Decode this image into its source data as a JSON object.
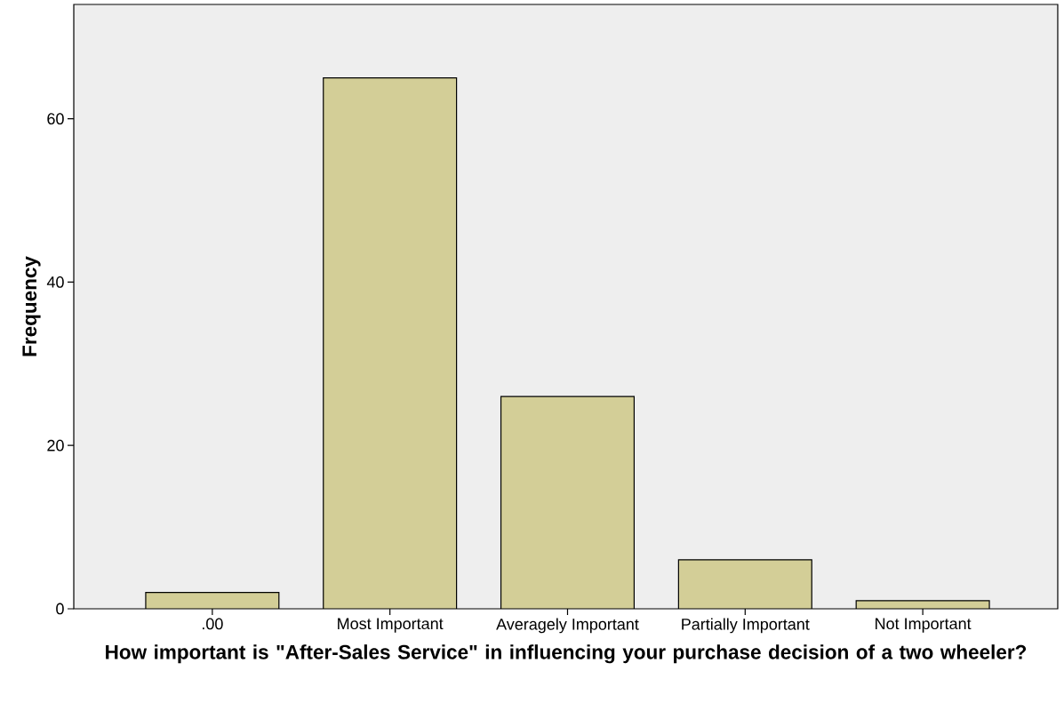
{
  "chart_data": {
    "type": "bar",
    "xlabel": "How important is \"After-Sales Service\" in influencing your purchase decision of a two wheeler?",
    "ylabel": "Frequency",
    "categories": [
      ".00",
      "Most Important",
      "Averagely Important",
      "Partially Important",
      "Not Important"
    ],
    "values": [
      2,
      65,
      26,
      6,
      1
    ],
    "color": "#d3ce97",
    "ylim": [
      0,
      74
    ],
    "yticks": [
      0,
      20,
      40,
      60
    ]
  }
}
